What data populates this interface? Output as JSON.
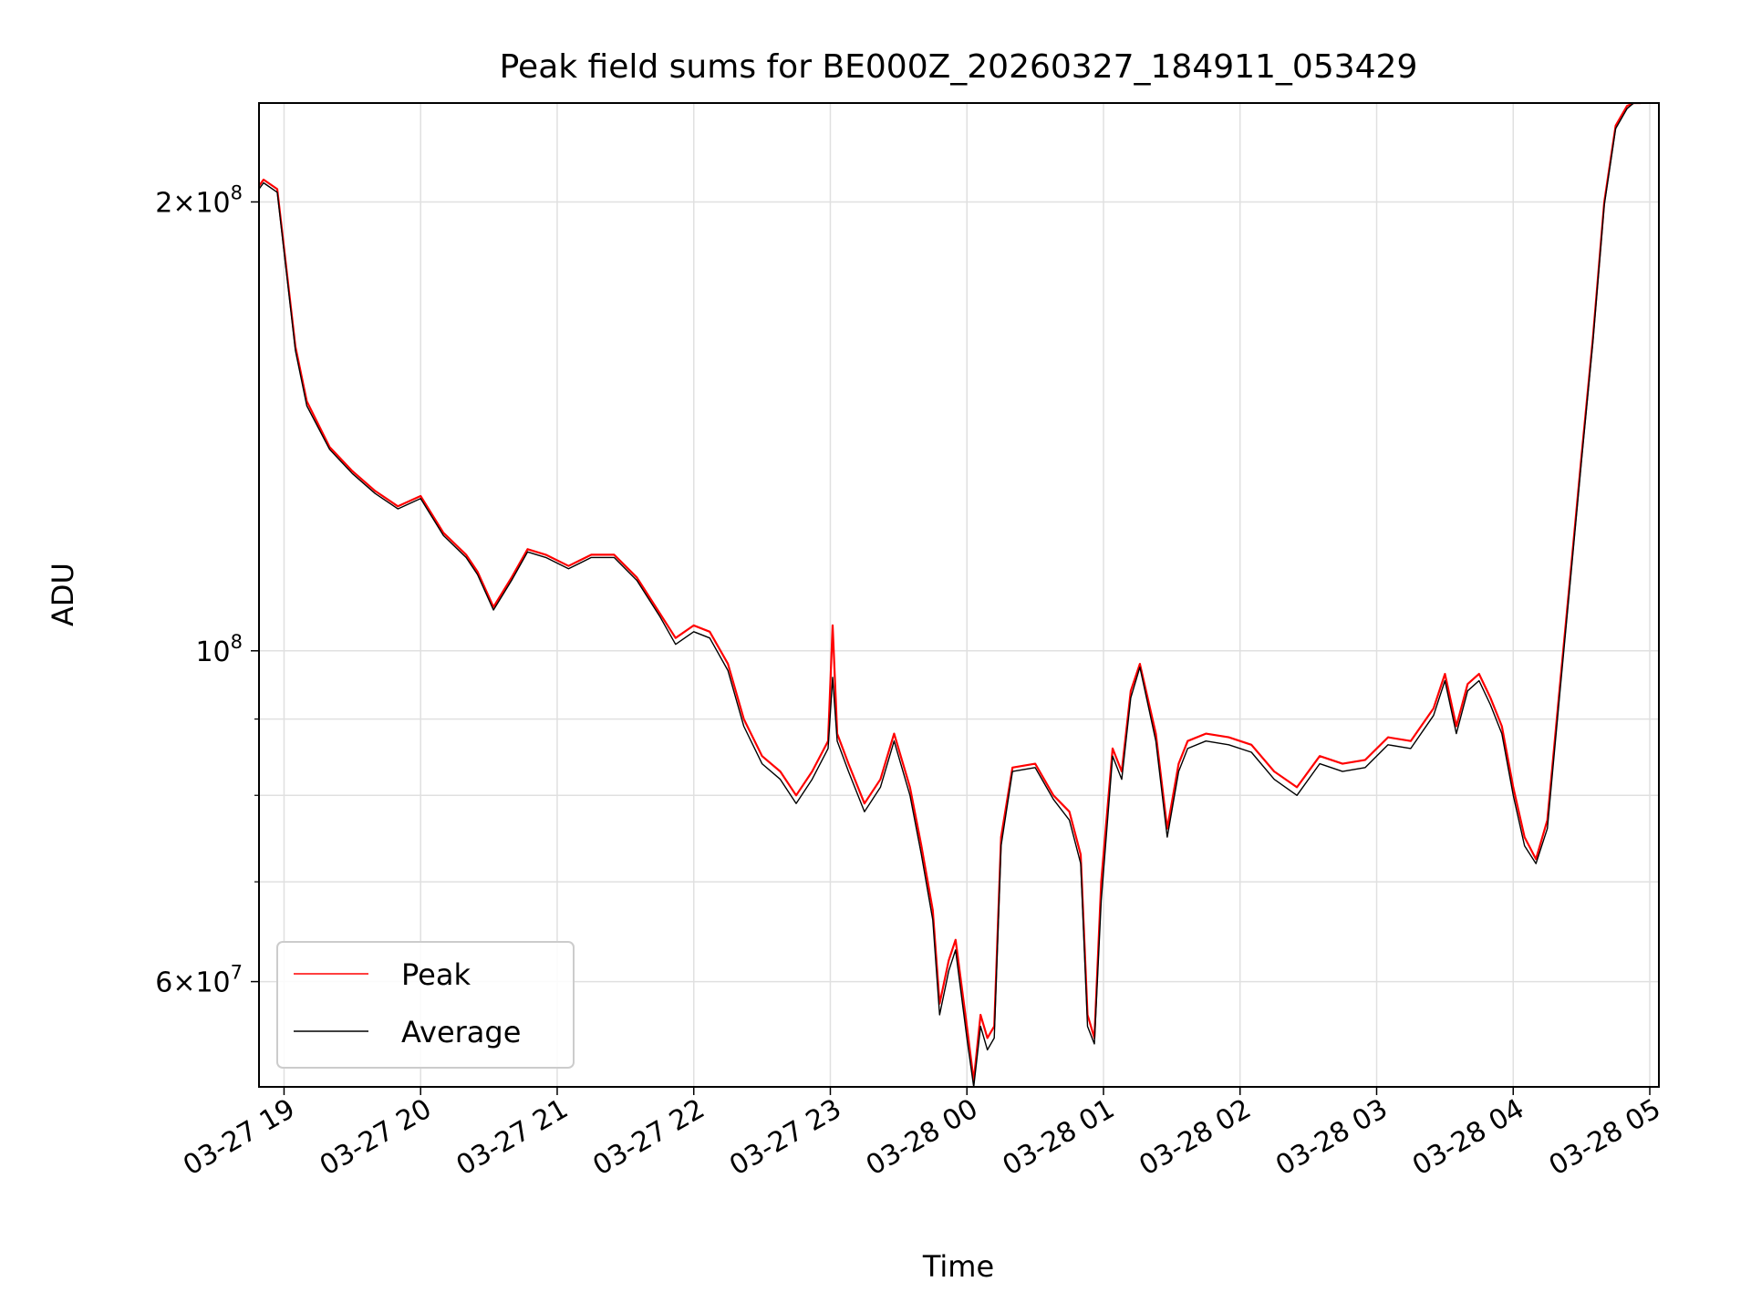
{
  "chart_data": {
    "type": "line",
    "title": "Peak field sums for BE000Z_20260327_184911_053429",
    "xlabel": "Time",
    "ylabel": "ADU",
    "yscale": "log",
    "ylim": [
      51000000,
      233000000
    ],
    "xlim": [
      "2026-03-27 18:49",
      "2026-03-28 05:04"
    ],
    "grid": true,
    "legend": {
      "placement": "lower-left"
    },
    "x_ticks": [
      "03-27 19",
      "03-27 20",
      "03-27 21",
      "03-27 22",
      "03-27 23",
      "03-28 00",
      "03-28 01",
      "03-28 02",
      "03-28 03",
      "03-28 04",
      "03-28 05"
    ],
    "y_ticks": [
      {
        "value": 200000000,
        "mant": "2",
        "exp": "8"
      },
      {
        "value": 100000000,
        "mant": "",
        "exp": "8"
      },
      {
        "value": 60000000,
        "mant": "6",
        "exp": "7"
      }
    ],
    "y_minor": [
      70000000,
      80000000,
      90000000
    ],
    "series": [
      {
        "name": "Peak",
        "color": "#ff0000",
        "x": [
          "2026-03-27 18:49",
          "2026-03-27 18:51",
          "2026-03-27 18:57",
          "2026-03-27 19:05",
          "2026-03-27 19:10",
          "2026-03-27 19:20",
          "2026-03-27 19:30",
          "2026-03-27 19:40",
          "2026-03-27 19:50",
          "2026-03-27 20:00",
          "2026-03-27 20:10",
          "2026-03-27 20:20",
          "2026-03-27 20:25",
          "2026-03-27 20:32",
          "2026-03-27 20:40",
          "2026-03-27 20:47",
          "2026-03-27 20:55",
          "2026-03-27 21:05",
          "2026-03-27 21:15",
          "2026-03-27 21:25",
          "2026-03-27 21:35",
          "2026-03-27 21:45",
          "2026-03-27 21:52",
          "2026-03-27 22:00",
          "2026-03-27 22:07",
          "2026-03-27 22:15",
          "2026-03-27 22:22",
          "2026-03-27 22:30",
          "2026-03-27 22:38",
          "2026-03-27 22:45",
          "2026-03-27 22:52",
          "2026-03-27 22:59",
          "2026-03-27 23:01",
          "2026-03-27 23:03",
          "2026-03-27 23:08",
          "2026-03-27 23:15",
          "2026-03-27 23:22",
          "2026-03-27 23:28",
          "2026-03-27 23:35",
          "2026-03-27 23:40",
          "2026-03-27 23:45",
          "2026-03-27 23:48",
          "2026-03-27 23:52",
          "2026-03-27 23:55",
          "2026-03-28 00:00",
          "2026-03-28 00:03",
          "2026-03-28 00:06",
          "2026-03-28 00:09",
          "2026-03-28 00:12",
          "2026-03-28 00:15",
          "2026-03-28 00:20",
          "2026-03-28 00:30",
          "2026-03-28 00:38",
          "2026-03-28 00:45",
          "2026-03-28 00:50",
          "2026-03-28 00:53",
          "2026-03-28 00:56",
          "2026-03-28 00:59",
          "2026-03-28 01:04",
          "2026-03-28 01:08",
          "2026-03-28 01:12",
          "2026-03-28 01:16",
          "2026-03-28 01:23",
          "2026-03-28 01:28",
          "2026-03-28 01:33",
          "2026-03-28 01:37",
          "2026-03-28 01:45",
          "2026-03-28 01:55",
          "2026-03-28 02:05",
          "2026-03-28 02:15",
          "2026-03-28 02:25",
          "2026-03-28 02:35",
          "2026-03-28 02:45",
          "2026-03-28 02:55",
          "2026-03-28 03:05",
          "2026-03-28 03:15",
          "2026-03-28 03:25",
          "2026-03-28 03:30",
          "2026-03-28 03:35",
          "2026-03-28 03:40",
          "2026-03-28 03:45",
          "2026-03-28 03:50",
          "2026-03-28 03:55",
          "2026-03-28 04:00",
          "2026-03-28 04:05",
          "2026-03-28 04:10",
          "2026-03-28 04:15",
          "2026-03-28 04:20",
          "2026-03-28 04:25",
          "2026-03-28 04:30",
          "2026-03-28 04:35",
          "2026-03-28 04:40",
          "2026-03-28 04:45",
          "2026-03-28 04:50",
          "2026-03-28 04:53",
          "2026-03-28 04:56"
        ],
        "values": [
          205000000,
          207000000,
          204000000,
          160000000,
          147000000,
          137000000,
          132000000,
          128000000,
          125000000,
          127000000,
          120000000,
          116000000,
          113000000,
          107000000,
          112000000,
          117000000,
          116000000,
          114000000,
          116000000,
          116000000,
          112000000,
          106000000,
          102000000,
          104000000,
          103000000,
          98000000,
          90000000,
          85000000,
          83000000,
          80000000,
          83000000,
          87000000,
          104000000,
          88000000,
          84000000,
          79000000,
          82000000,
          88000000,
          81000000,
          74000000,
          67000000,
          58000000,
          62000000,
          64000000,
          56000000,
          51500000,
          57000000,
          55000000,
          56000000,
          75000000,
          83500000,
          84000000,
          80000000,
          78000000,
          73000000,
          57000000,
          55000000,
          70000000,
          86000000,
          83000000,
          94000000,
          98000000,
          88000000,
          76000000,
          84000000,
          87000000,
          88000000,
          87500000,
          86500000,
          83000000,
          81000000,
          85000000,
          84000000,
          84500000,
          87500000,
          87000000,
          91500000,
          96500000,
          89000000,
          95000000,
          96500000,
          93000000,
          89000000,
          81000000,
          75000000,
          72500000,
          77000000,
          93000000,
          112000000,
          135000000,
          162000000,
          200000000,
          225000000,
          232000000,
          233000000,
          233000000
        ]
      },
      {
        "name": "Average",
        "color": "#000000",
        "x": [
          "2026-03-27 18:49",
          "2026-03-27 18:51",
          "2026-03-27 18:57",
          "2026-03-27 19:05",
          "2026-03-27 19:10",
          "2026-03-27 19:20",
          "2026-03-27 19:30",
          "2026-03-27 19:40",
          "2026-03-27 19:50",
          "2026-03-27 20:00",
          "2026-03-27 20:10",
          "2026-03-27 20:20",
          "2026-03-27 20:25",
          "2026-03-27 20:32",
          "2026-03-27 20:40",
          "2026-03-27 20:47",
          "2026-03-27 20:55",
          "2026-03-27 21:05",
          "2026-03-27 21:15",
          "2026-03-27 21:25",
          "2026-03-27 21:35",
          "2026-03-27 21:45",
          "2026-03-27 21:52",
          "2026-03-27 22:00",
          "2026-03-27 22:07",
          "2026-03-27 22:15",
          "2026-03-27 22:22",
          "2026-03-27 22:30",
          "2026-03-27 22:38",
          "2026-03-27 22:45",
          "2026-03-27 22:52",
          "2026-03-27 22:59",
          "2026-03-27 23:01",
          "2026-03-27 23:03",
          "2026-03-27 23:08",
          "2026-03-27 23:15",
          "2026-03-27 23:22",
          "2026-03-27 23:28",
          "2026-03-27 23:35",
          "2026-03-27 23:40",
          "2026-03-27 23:45",
          "2026-03-27 23:48",
          "2026-03-27 23:52",
          "2026-03-27 23:55",
          "2026-03-28 00:00",
          "2026-03-28 00:03",
          "2026-03-28 00:06",
          "2026-03-28 00:09",
          "2026-03-28 00:12",
          "2026-03-28 00:15",
          "2026-03-28 00:20",
          "2026-03-28 00:30",
          "2026-03-28 00:38",
          "2026-03-28 00:45",
          "2026-03-28 00:50",
          "2026-03-28 00:53",
          "2026-03-28 00:56",
          "2026-03-28 00:59",
          "2026-03-28 01:04",
          "2026-03-28 01:08",
          "2026-03-28 01:12",
          "2026-03-28 01:16",
          "2026-03-28 01:23",
          "2026-03-28 01:28",
          "2026-03-28 01:33",
          "2026-03-28 01:37",
          "2026-03-28 01:45",
          "2026-03-28 01:55",
          "2026-03-28 02:05",
          "2026-03-28 02:15",
          "2026-03-28 02:25",
          "2026-03-28 02:35",
          "2026-03-28 02:45",
          "2026-03-28 02:55",
          "2026-03-28 03:05",
          "2026-03-28 03:15",
          "2026-03-28 03:25",
          "2026-03-28 03:30",
          "2026-03-28 03:35",
          "2026-03-28 03:40",
          "2026-03-28 03:45",
          "2026-03-28 03:50",
          "2026-03-28 03:55",
          "2026-03-28 04:00",
          "2026-03-28 04:05",
          "2026-03-28 04:10",
          "2026-03-28 04:15",
          "2026-03-28 04:20",
          "2026-03-28 04:25",
          "2026-03-28 04:30",
          "2026-03-28 04:35",
          "2026-03-28 04:40",
          "2026-03-28 04:45",
          "2026-03-28 04:50",
          "2026-03-28 04:53",
          "2026-03-28 04:56"
        ],
        "values": [
          204000000,
          206000000,
          203000000,
          159000000,
          146000000,
          136500000,
          131500000,
          127500000,
          124500000,
          126500000,
          119500000,
          115500000,
          112500000,
          106500000,
          111500000,
          116500000,
          115500000,
          113500000,
          115500000,
          115500000,
          111500000,
          105500000,
          101000000,
          103000000,
          102000000,
          97000000,
          89000000,
          84000000,
          82000000,
          79000000,
          82000000,
          86000000,
          96000000,
          87000000,
          83000000,
          78000000,
          81000000,
          87000000,
          80000000,
          73000000,
          66000000,
          57000000,
          61000000,
          63000000,
          55000000,
          51000000,
          56000000,
          54000000,
          55000000,
          74000000,
          83000000,
          83500000,
          79500000,
          77000000,
          72000000,
          56000000,
          54500000,
          68000000,
          85000000,
          82000000,
          93000000,
          97500000,
          87000000,
          75000000,
          83000000,
          86000000,
          87000000,
          86500000,
          85500000,
          82000000,
          80000000,
          84000000,
          83000000,
          83500000,
          86500000,
          86000000,
          90500000,
          95500000,
          88000000,
          94000000,
          95500000,
          92000000,
          88000000,
          80000000,
          74000000,
          72000000,
          76000000,
          92000000,
          111000000,
          134000000,
          161000000,
          199000000,
          224000000,
          231000000,
          233000000,
          233000000
        ]
      }
    ]
  }
}
